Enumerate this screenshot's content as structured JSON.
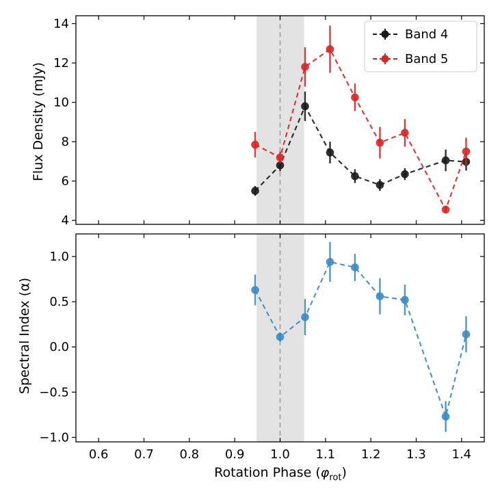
{
  "chart_data": [
    {
      "type": "line",
      "panel": "top",
      "ylabel": "Flux Density (mJy)",
      "xlim": [
        0.55,
        1.45
      ],
      "ylim": [
        3.8,
        14.4
      ],
      "yticks": [
        4,
        6,
        8,
        10,
        12,
        14
      ],
      "ytick_labels": [
        "4",
        "6",
        "8",
        "10",
        "12",
        "14"
      ],
      "legend": "top-right",
      "series": [
        {
          "name": "Band 4",
          "color": "#1a1a1a",
          "x": [
            0.945,
            1.0,
            1.055,
            1.11,
            1.165,
            1.22,
            1.275,
            1.365,
            1.41
          ],
          "y": [
            5.5,
            6.8,
            9.8,
            7.45,
            6.25,
            5.8,
            6.35,
            7.05,
            6.98
          ],
          "yerr": [
            0.25,
            0.3,
            0.75,
            0.55,
            0.35,
            0.3,
            0.3,
            0.55,
            0.45
          ]
        },
        {
          "name": "Band 5",
          "color": "#d62728",
          "x": [
            0.945,
            1.0,
            1.055,
            1.11,
            1.165,
            1.22,
            1.275,
            1.365,
            1.41
          ],
          "y": [
            7.85,
            7.2,
            11.8,
            12.7,
            10.25,
            7.95,
            8.45,
            4.55,
            7.5
          ],
          "yerr": [
            0.65,
            0.3,
            1.0,
            1.2,
            0.7,
            0.8,
            0.7,
            0.2,
            0.7
          ]
        }
      ],
      "shaded_region": [
        0.948,
        1.053
      ],
      "vertical_line": 1.0
    },
    {
      "type": "line",
      "panel": "bottom",
      "ylabel": "Spectral Index (α)",
      "xlabel": "Rotation Phase (φrot)",
      "xlim": [
        0.55,
        1.45
      ],
      "ylim": [
        -1.05,
        1.25
      ],
      "xticks": [
        0.6,
        0.7,
        0.8,
        0.9,
        1.0,
        1.1,
        1.2,
        1.3,
        1.4
      ],
      "xtick_labels": [
        "0.6",
        "0.7",
        "0.8",
        "0.9",
        "1.0",
        "1.1",
        "1.2",
        "1.3",
        "1.4"
      ],
      "yticks": [
        -1.0,
        -0.5,
        0.0,
        0.5,
        1.0
      ],
      "ytick_labels": [
        "−1.0",
        "−0.5",
        "0.0",
        "0.5",
        "1.0"
      ],
      "series": [
        {
          "name": "Spectral Index",
          "color": "#3b8bc2",
          "x": [
            0.945,
            1.0,
            1.055,
            1.11,
            1.165,
            1.22,
            1.275,
            1.365,
            1.41
          ],
          "y": [
            0.63,
            0.11,
            0.33,
            0.94,
            0.88,
            0.56,
            0.52,
            -0.77,
            0.14
          ],
          "yerr": [
            0.17,
            0.05,
            0.2,
            0.22,
            0.15,
            0.2,
            0.17,
            0.17,
            0.2
          ]
        }
      ],
      "shaded_region": [
        0.948,
        1.053
      ],
      "vertical_line": 1.0
    }
  ],
  "labels": {
    "top_ylabel": "Flux Density (mJy)",
    "bottom_ylabel": "Spectral Index (α)",
    "xlabel_main": "Rotation Phase (",
    "xlabel_phi": "φ",
    "xlabel_sub": "rot",
    "xlabel_close": ")",
    "legend_band4": "Band 4",
    "legend_band5": "Band 5"
  },
  "colors": {
    "band4": "#1a1a1a",
    "band5": "#d62728",
    "alpha": "#3b8bc2",
    "shade": "#e3e3e3",
    "vline": "#aaaaaa"
  }
}
